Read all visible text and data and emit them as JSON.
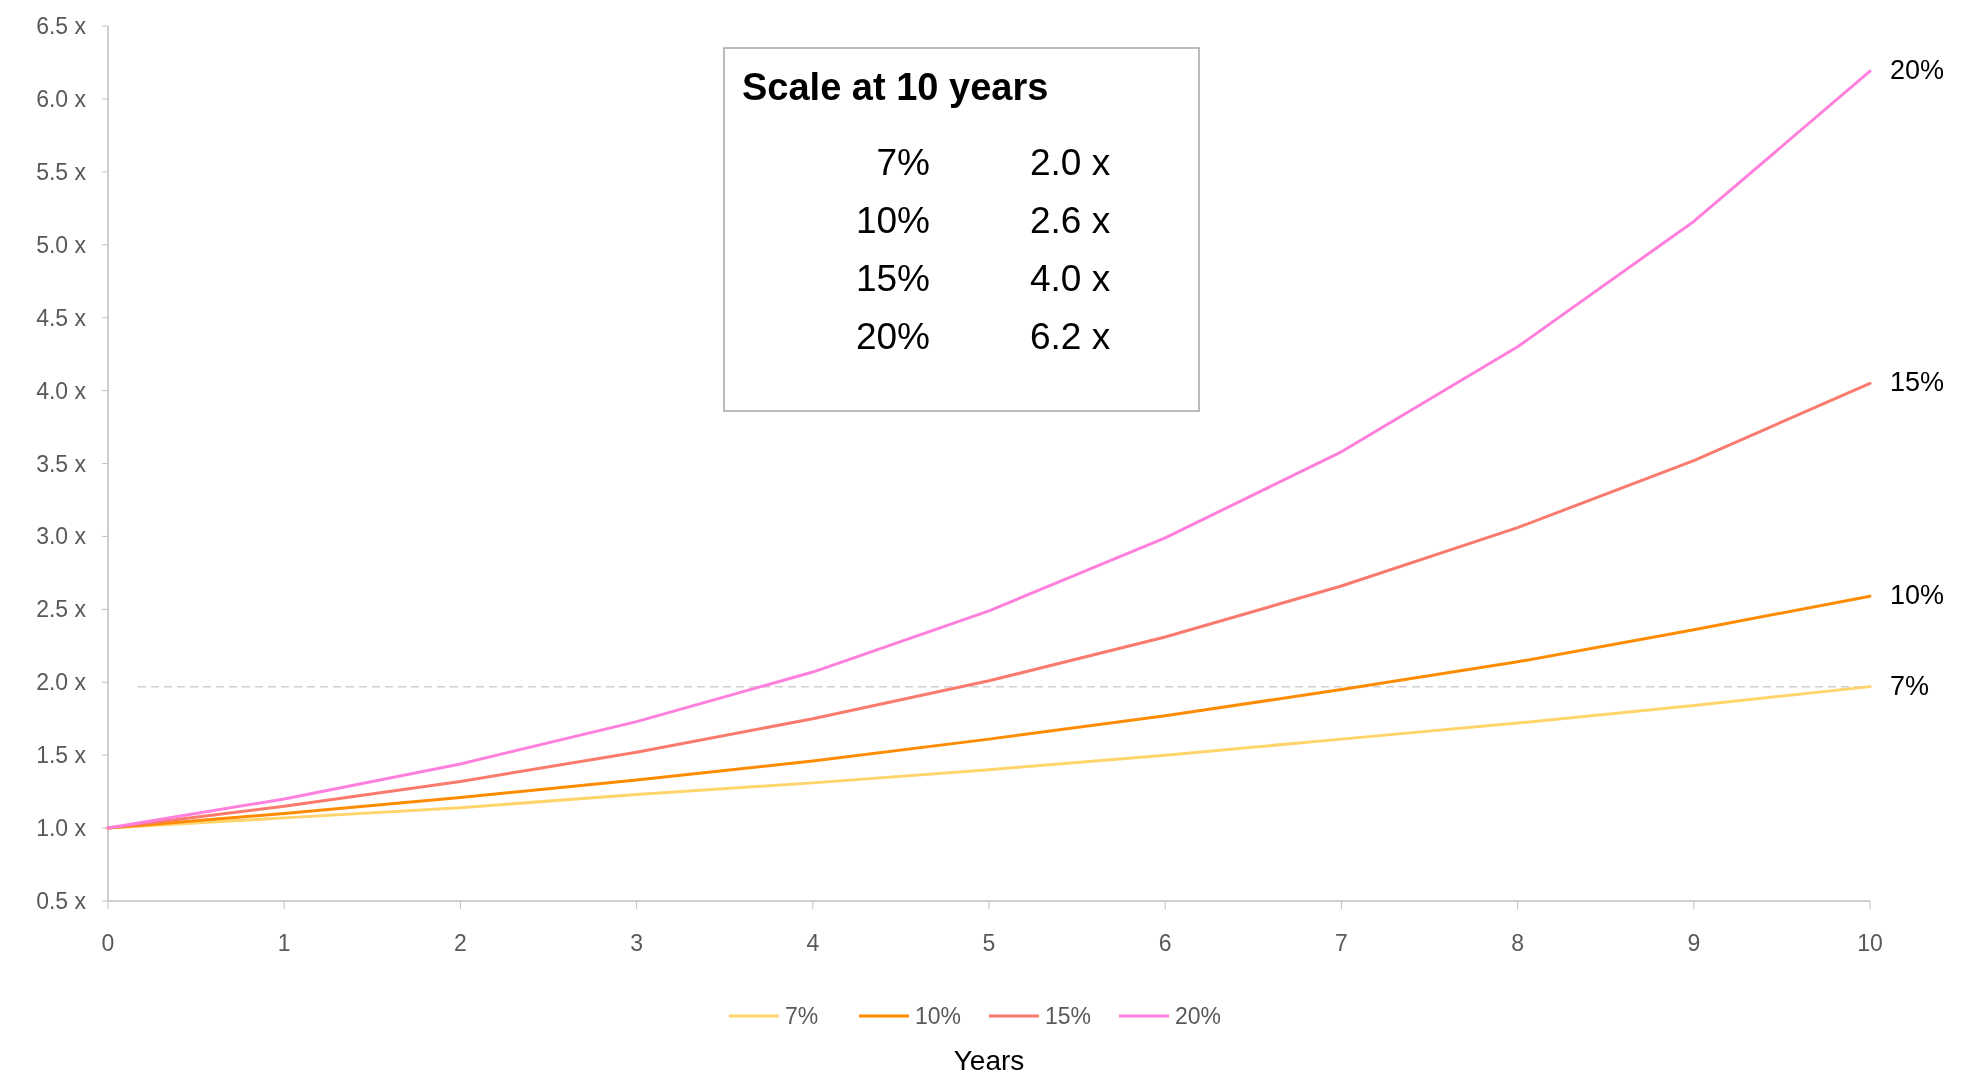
{
  "chart_data": {
    "type": "line",
    "xlabel": "Years",
    "x": [
      0,
      1,
      2,
      3,
      4,
      5,
      6,
      7,
      8,
      9,
      10
    ],
    "series": [
      {
        "name": "7%",
        "color": "#ffd46b",
        "values": [
          1,
          1.07,
          1.14,
          1.23,
          1.31,
          1.4,
          1.5,
          1.61,
          1.72,
          1.84,
          1.97
        ]
      },
      {
        "name": "10%",
        "color": "#ff8c00",
        "values": [
          1,
          1.1,
          1.21,
          1.33,
          1.46,
          1.61,
          1.77,
          1.95,
          2.14,
          2.36,
          2.59
        ]
      },
      {
        "name": "15%",
        "color": "#fa7a6e",
        "values": [
          1,
          1.15,
          1.32,
          1.52,
          1.75,
          2.01,
          2.31,
          2.66,
          3.06,
          3.52,
          4.05
        ]
      },
      {
        "name": "20%",
        "color": "#ff80dc",
        "values": [
          1,
          1.2,
          1.44,
          1.73,
          2.07,
          2.49,
          2.99,
          3.58,
          4.3,
          5.16,
          6.19
        ]
      }
    ],
    "xlim": [
      0,
      10
    ],
    "xticks": [
      0,
      1,
      2,
      3,
      4,
      5,
      6,
      7,
      8,
      9,
      10
    ],
    "ylim": [
      0.5,
      6.5
    ],
    "yticks": [
      {
        "value": 0.5,
        "label": "0.5 x"
      },
      {
        "value": 1,
        "label": "1.0 x"
      },
      {
        "value": 1.5,
        "label": "1.5 x"
      },
      {
        "value": 2,
        "label": "2.0 x"
      },
      {
        "value": 2.5,
        "label": "2.5 x"
      },
      {
        "value": 3,
        "label": "3.0 x"
      },
      {
        "value": 3.5,
        "label": "3.5 x"
      },
      {
        "value": 4,
        "label": "4.0 x"
      },
      {
        "value": 4.5,
        "label": "4.5 x"
      },
      {
        "value": 5,
        "label": "5.0 x"
      },
      {
        "value": 5.5,
        "label": "5.5 x"
      },
      {
        "value": 6,
        "label": "6.0 x"
      },
      {
        "value": 6.5,
        "label": "6.5 x"
      }
    ],
    "ref_lines": [
      {
        "axis": "y",
        "value": 1.97,
        "color": "#d0d0d0",
        "line_style": "dashed"
      }
    ],
    "legend": "bottom",
    "grid": false,
    "marker": "none",
    "line_style": "solid",
    "annotations": [
      "Scale at 10 years",
      "7%",
      "2.0 x",
      "10%",
      "2.6 x",
      "15%",
      "4.0 x",
      "20%",
      "6.2 x"
    ]
  }
}
